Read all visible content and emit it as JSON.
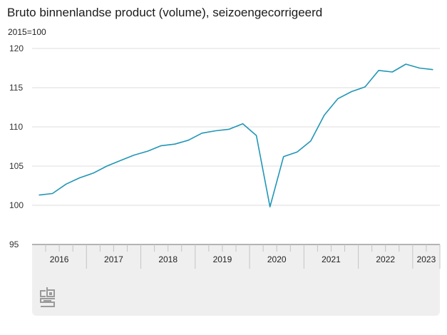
{
  "chart_data": {
    "type": "line",
    "title": "Bruto binnenlandse product (volume), seizoengecorrigeerd",
    "ylabel": "2015=100",
    "xlabel": "",
    "ylim": [
      95,
      120
    ],
    "yticks": [
      95,
      100,
      105,
      110,
      115,
      120
    ],
    "grid": true,
    "legend": "none",
    "x_groups": [
      {
        "label": "2016",
        "quarters": 4
      },
      {
        "label": "2017",
        "quarters": 4
      },
      {
        "label": "2018",
        "quarters": 4
      },
      {
        "label": "2019",
        "quarters": 4
      },
      {
        "label": "2020",
        "quarters": 4
      },
      {
        "label": "2021",
        "quarters": 4
      },
      {
        "label": "2022",
        "quarters": 4
      },
      {
        "label": "2023",
        "quarters": 2
      }
    ],
    "x": [
      "2016 Q1",
      "2016 Q2",
      "2016 Q3",
      "2016 Q4",
      "2017 Q1",
      "2017 Q2",
      "2017 Q3",
      "2017 Q4",
      "2018 Q1",
      "2018 Q2",
      "2018 Q3",
      "2018 Q4",
      "2019 Q1",
      "2019 Q2",
      "2019 Q3",
      "2019 Q4",
      "2020 Q1",
      "2020 Q2",
      "2020 Q3",
      "2020 Q4",
      "2021 Q1",
      "2021 Q2",
      "2021 Q3",
      "2021 Q4",
      "2022 Q1",
      "2022 Q2",
      "2022 Q3",
      "2022 Q4",
      "2023 Q1",
      "2023 Q2"
    ],
    "series": [
      {
        "name": "Bruto binnenlandse product (volume)",
        "color": "#2196b6",
        "values": [
          101.3,
          101.5,
          102.7,
          103.5,
          104.1,
          105.0,
          105.7,
          106.4,
          106.9,
          107.6,
          107.8,
          108.3,
          109.2,
          109.5,
          109.7,
          110.4,
          108.9,
          99.8,
          106.2,
          106.8,
          108.2,
          111.5,
          113.6,
          114.5,
          115.1,
          117.2,
          117.0,
          118.0,
          117.5,
          117.3
        ]
      }
    ]
  },
  "branding": {
    "logo": "cbs-logo-icon"
  }
}
